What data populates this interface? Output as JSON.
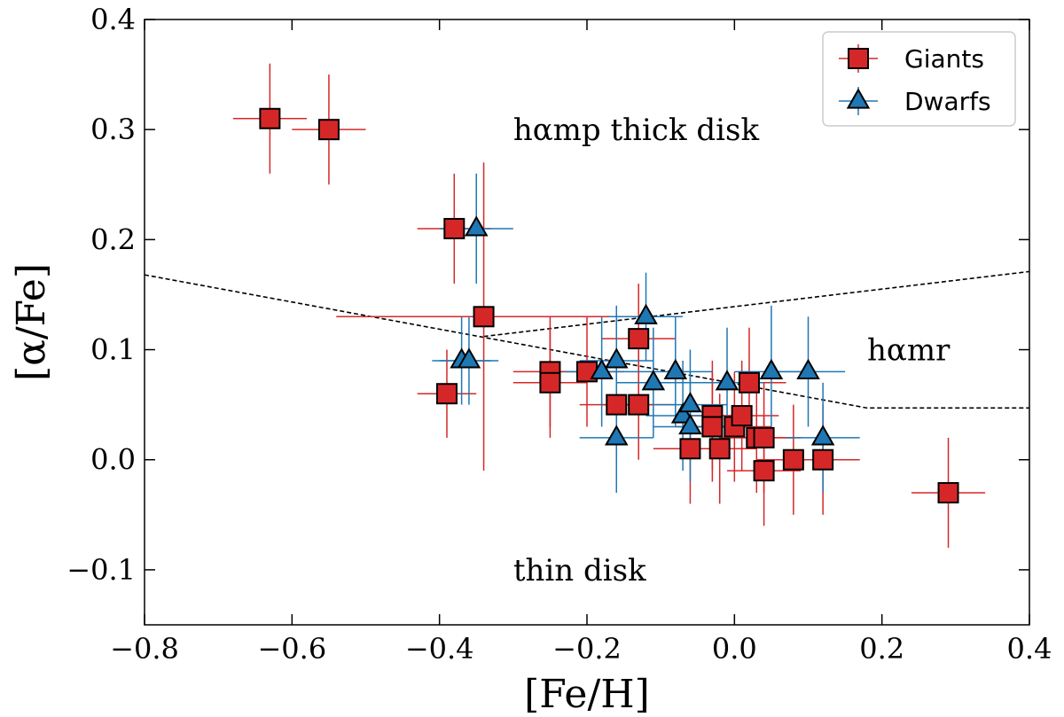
{
  "chart_data": {
    "type": "scatter",
    "xlabel": "[Fe/H]",
    "ylabel": "[α/Fe]",
    "xlim": [
      -0.8,
      0.4
    ],
    "ylim": [
      -0.15,
      0.4
    ],
    "x_ticks": [
      {
        "value": -0.8,
        "label": "−0.8"
      },
      {
        "value": -0.6,
        "label": "−0.6"
      },
      {
        "value": -0.4,
        "label": "−0.4"
      },
      {
        "value": -0.2,
        "label": "−0.2"
      },
      {
        "value": 0.0,
        "label": "0.0"
      },
      {
        "value": 0.2,
        "label": "0.2"
      },
      {
        "value": 0.4,
        "label": "0.4"
      }
    ],
    "y_ticks": [
      {
        "value": -0.1,
        "label": "−0.1"
      },
      {
        "value": 0.0,
        "label": "0.0"
      },
      {
        "value": 0.1,
        "label": "0.1"
      },
      {
        "value": 0.2,
        "label": "0.2"
      },
      {
        "value": 0.3,
        "label": "0.3"
      },
      {
        "value": 0.4,
        "label": "0.4"
      }
    ],
    "grid": false,
    "legend_position": "top-right",
    "series": [
      {
        "name": "Giants",
        "marker": "square",
        "color": "#d62728",
        "edge_color": "#000000",
        "points": [
          {
            "x": -0.63,
            "y": 0.31,
            "xerr": 0.05,
            "yerr": 0.05
          },
          {
            "x": -0.55,
            "y": 0.3,
            "xerr": 0.05,
            "yerr": 0.05
          },
          {
            "x": -0.38,
            "y": 0.21,
            "xerr": 0.05,
            "yerr": 0.05
          },
          {
            "x": -0.34,
            "y": 0.13,
            "xerr": 0.2,
            "yerr": 0.14
          },
          {
            "x": -0.39,
            "y": 0.06,
            "xerr": 0.04,
            "yerr": 0.04
          },
          {
            "x": -0.25,
            "y": 0.08,
            "xerr": 0.05,
            "yerr": 0.05
          },
          {
            "x": -0.25,
            "y": 0.07,
            "xerr": 0.05,
            "yerr": 0.05
          },
          {
            "x": -0.2,
            "y": 0.08,
            "xerr": 0.05,
            "yerr": 0.05
          },
          {
            "x": -0.16,
            "y": 0.05,
            "xerr": 0.05,
            "yerr": 0.05
          },
          {
            "x": -0.13,
            "y": 0.05,
            "xerr": 0.05,
            "yerr": 0.05
          },
          {
            "x": -0.13,
            "y": 0.11,
            "xerr": 0.05,
            "yerr": 0.05
          },
          {
            "x": -0.06,
            "y": 0.01,
            "xerr": 0.05,
            "yerr": 0.05
          },
          {
            "x": -0.03,
            "y": 0.04,
            "xerr": 0.05,
            "yerr": 0.05
          },
          {
            "x": -0.03,
            "y": 0.03,
            "xerr": 0.05,
            "yerr": 0.05
          },
          {
            "x": -0.02,
            "y": 0.01,
            "xerr": 0.05,
            "yerr": 0.05
          },
          {
            "x": 0.0,
            "y": 0.03,
            "xerr": 0.05,
            "yerr": 0.05
          },
          {
            "x": 0.01,
            "y": 0.04,
            "xerr": 0.05,
            "yerr": 0.05
          },
          {
            "x": 0.02,
            "y": 0.07,
            "xerr": 0.05,
            "yerr": 0.05
          },
          {
            "x": 0.03,
            "y": 0.02,
            "xerr": 0.05,
            "yerr": 0.05
          },
          {
            "x": 0.04,
            "y": 0.02,
            "xerr": 0.05,
            "yerr": 0.05
          },
          {
            "x": 0.04,
            "y": -0.01,
            "xerr": 0.05,
            "yerr": 0.05
          },
          {
            "x": 0.08,
            "y": 0.0,
            "xerr": 0.05,
            "yerr": 0.05
          },
          {
            "x": 0.12,
            "y": 0.0,
            "xerr": 0.05,
            "yerr": 0.05
          },
          {
            "x": 0.29,
            "y": -0.03,
            "xerr": 0.05,
            "yerr": 0.05
          }
        ]
      },
      {
        "name": "Dwarfs",
        "marker": "triangle",
        "color": "#1f77b4",
        "edge_color": "#000000",
        "points": [
          {
            "x": -0.35,
            "y": 0.21,
            "xerr": 0.05,
            "yerr": 0.05
          },
          {
            "x": -0.37,
            "y": 0.09,
            "xerr": 0.04,
            "yerr": 0.04
          },
          {
            "x": -0.36,
            "y": 0.09,
            "xerr": 0.04,
            "yerr": 0.04
          },
          {
            "x": -0.18,
            "y": 0.08,
            "xerr": 0.05,
            "yerr": 0.05
          },
          {
            "x": -0.16,
            "y": 0.09,
            "xerr": 0.05,
            "yerr": 0.05
          },
          {
            "x": -0.16,
            "y": 0.02,
            "xerr": 0.05,
            "yerr": 0.05
          },
          {
            "x": -0.12,
            "y": 0.13,
            "xerr": 0.05,
            "yerr": 0.04
          },
          {
            "x": -0.11,
            "y": 0.07,
            "xerr": 0.05,
            "yerr": 0.05
          },
          {
            "x": -0.08,
            "y": 0.08,
            "xerr": 0.05,
            "yerr": 0.05
          },
          {
            "x": -0.07,
            "y": 0.04,
            "xerr": 0.05,
            "yerr": 0.05
          },
          {
            "x": -0.06,
            "y": 0.05,
            "xerr": 0.05,
            "yerr": 0.05
          },
          {
            "x": -0.06,
            "y": 0.03,
            "xerr": 0.05,
            "yerr": 0.05
          },
          {
            "x": -0.01,
            "y": 0.07,
            "xerr": 0.05,
            "yerr": 0.05
          },
          {
            "x": 0.05,
            "y": 0.08,
            "xerr": 0.05,
            "yerr": 0.06
          },
          {
            "x": 0.1,
            "y": 0.08,
            "xerr": 0.05,
            "yerr": 0.05
          },
          {
            "x": 0.12,
            "y": 0.02,
            "xerr": 0.05,
            "yerr": 0.05
          }
        ]
      }
    ],
    "boundaries": [
      {
        "name": "thick-thin-boundary",
        "style": "dashed",
        "points": [
          [
            -0.8,
            0.168
          ],
          [
            0.18,
            0.047
          ],
          [
            0.4,
            0.047
          ]
        ]
      },
      {
        "name": "hamr-boundary",
        "style": "dashed",
        "points": [
          [
            -0.34,
            0.112
          ],
          [
            0.4,
            0.171
          ]
        ]
      }
    ],
    "annotations": [
      {
        "text": "hαmp thick disk",
        "x": -0.3,
        "y": 0.3
      },
      {
        "text": "hαmr",
        "x": 0.18,
        "y": 0.1
      },
      {
        "text": "thin disk",
        "x": -0.3,
        "y": -0.1
      }
    ]
  }
}
